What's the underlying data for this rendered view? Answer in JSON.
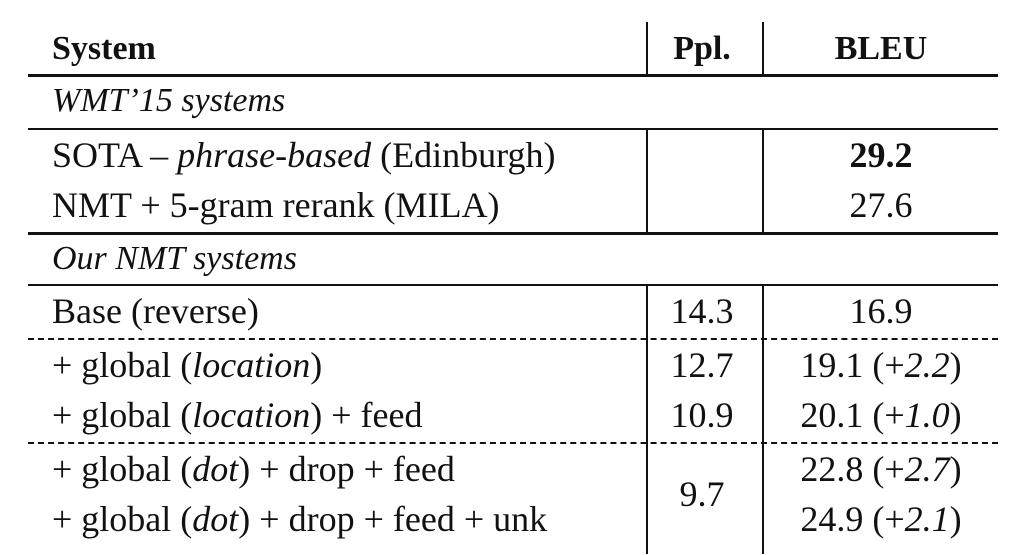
{
  "header": {
    "system": "System",
    "ppl": "Ppl.",
    "bleu": "BLEU"
  },
  "sections": {
    "wmt": "WMT’15 systems",
    "ours": "Our NMT systems"
  },
  "rows": {
    "sota": {
      "pre": "SOTA – ",
      "em": "phrase-based",
      "post": " (Edinburgh)",
      "ppl": "",
      "bleu": "29.2"
    },
    "mila": {
      "label": "NMT + 5-gram rerank (MILA)",
      "ppl": "",
      "bleu": "27.6"
    },
    "base": {
      "label": "Base (reverse)",
      "ppl": "14.3",
      "bleu": "16.9"
    },
    "loc": {
      "pre": "+ global (",
      "em": "location",
      "post": ")",
      "ppl": "12.7",
      "bleu_main": "19.1 (+",
      "bleu_em": "2.2",
      "bleu_post": ")"
    },
    "locfeed": {
      "pre": "+ global (",
      "em": "location",
      "post": ") + feed",
      "ppl": "10.9",
      "bleu_main": "20.1 (+",
      "bleu_em": "1.0",
      "bleu_post": ")"
    },
    "dot": {
      "pre": "+ global (",
      "em": "dot",
      "post": ") + drop + feed",
      "bleu_main": "22.8 (+",
      "bleu_em": "2.7",
      "bleu_post": ")"
    },
    "dotunk": {
      "pre": "+ global (",
      "em": "dot",
      "post": ") + drop + feed + unk",
      "bleu_main": "24.9 (+",
      "bleu_em": "2.1",
      "bleu_post": ")"
    },
    "dot_ppl": "9.7"
  }
}
